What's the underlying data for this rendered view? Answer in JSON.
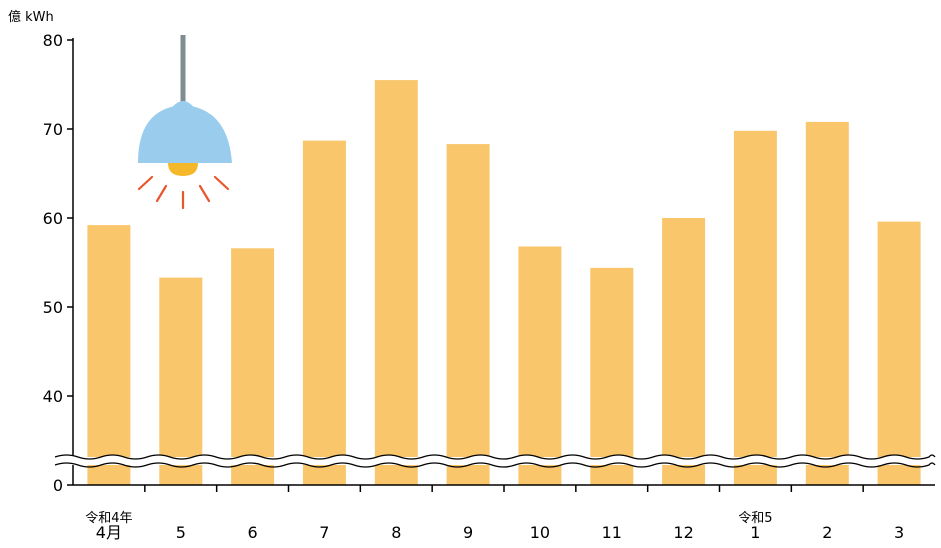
{
  "chart_data": {
    "type": "bar",
    "ylabel": "億 kWh",
    "categories": [
      "4月",
      "5",
      "6",
      "7",
      "8",
      "9",
      "10",
      "11",
      "12",
      "1",
      "2",
      "3"
    ],
    "category_notes": [
      "令和4年",
      "",
      "",
      "",
      "",
      "",
      "",
      "",
      "",
      "令和5",
      "",
      ""
    ],
    "values": [
      59.2,
      53.3,
      56.6,
      68.7,
      75.5,
      68.3,
      56.8,
      54.4,
      60.0,
      69.8,
      70.8,
      59.6
    ],
    "ylim": [
      0,
      80
    ],
    "y_axis_break": [
      0,
      32
    ],
    "yticks": [
      0,
      40,
      50,
      60,
      70,
      80
    ],
    "grid": false,
    "legend": "none",
    "colors": {
      "bar": "#F9C66B",
      "axis": "#000000",
      "lamp_shade": "#9ACCEE",
      "lamp_cord": "#7F8C90",
      "bulb": "#F5B82A",
      "rays": "#E8562A"
    }
  },
  "decor": {
    "lamp_icon": "hanging-lamp-icon"
  }
}
